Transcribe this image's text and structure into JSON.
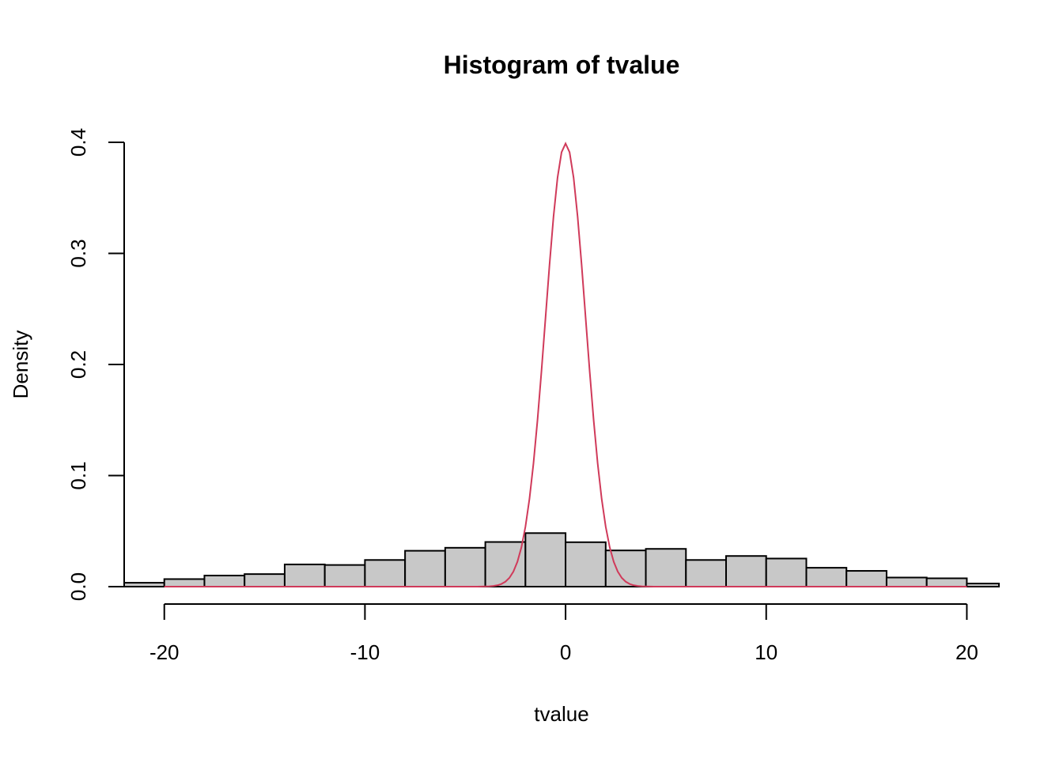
{
  "chart_data": {
    "type": "bar",
    "title": "Histogram of tvalue",
    "xlabel": "tvalue",
    "ylabel": "Density",
    "xlim": [
      -22,
      21.6
    ],
    "ylim": [
      0,
      0.4
    ],
    "x_ticks": [
      -20,
      -10,
      0,
      10,
      20
    ],
    "x_tick_labels": [
      "-20",
      "-10",
      "0",
      "10",
      "20"
    ],
    "y_ticks": [
      0,
      0.1,
      0.2,
      0.3,
      0.4
    ],
    "y_tick_labels": [
      "0.0",
      "0.1",
      "0.2",
      "0.3",
      "0.4"
    ],
    "grid": false,
    "bins": [
      {
        "x0": -22,
        "x1": -20,
        "density": 0.0035
      },
      {
        "x0": -20,
        "x1": -18,
        "density": 0.0068
      },
      {
        "x0": -18,
        "x1": -16,
        "density": 0.01
      },
      {
        "x0": -16,
        "x1": -14,
        "density": 0.0113
      },
      {
        "x0": -14,
        "x1": -12,
        "density": 0.02
      },
      {
        "x0": -12,
        "x1": -10,
        "density": 0.0195
      },
      {
        "x0": -10,
        "x1": -8,
        "density": 0.024
      },
      {
        "x0": -8,
        "x1": -6,
        "density": 0.0323
      },
      {
        "x0": -6,
        "x1": -4,
        "density": 0.035
      },
      {
        "x0": -4,
        "x1": -2,
        "density": 0.0402
      },
      {
        "x0": -2,
        "x1": 0,
        "density": 0.0482
      },
      {
        "x0": 0,
        "x1": 2,
        "density": 0.04
      },
      {
        "x0": 2,
        "x1": 4,
        "density": 0.0326
      },
      {
        "x0": 4,
        "x1": 6,
        "density": 0.034
      },
      {
        "x0": 6,
        "x1": 8,
        "density": 0.024
      },
      {
        "x0": 8,
        "x1": 10,
        "density": 0.0276
      },
      {
        "x0": 10,
        "x1": 12,
        "density": 0.0253
      },
      {
        "x0": 12,
        "x1": 14,
        "density": 0.017
      },
      {
        "x0": 14,
        "x1": 16,
        "density": 0.0142
      },
      {
        "x0": 16,
        "x1": 18,
        "density": 0.0082
      },
      {
        "x0": 18,
        "x1": 20,
        "density": 0.0075
      },
      {
        "x0": 20,
        "x1": 22,
        "density": 0.0028
      }
    ],
    "bar_fill": "#c8c8c8",
    "bar_stroke": "#000000",
    "overlay": {
      "type": "line",
      "curve": "normal density, mean 0, sd 1",
      "mean": 0,
      "sd": 1,
      "x_range": [
        -20,
        20
      ],
      "color": "#d03a5a"
    }
  }
}
